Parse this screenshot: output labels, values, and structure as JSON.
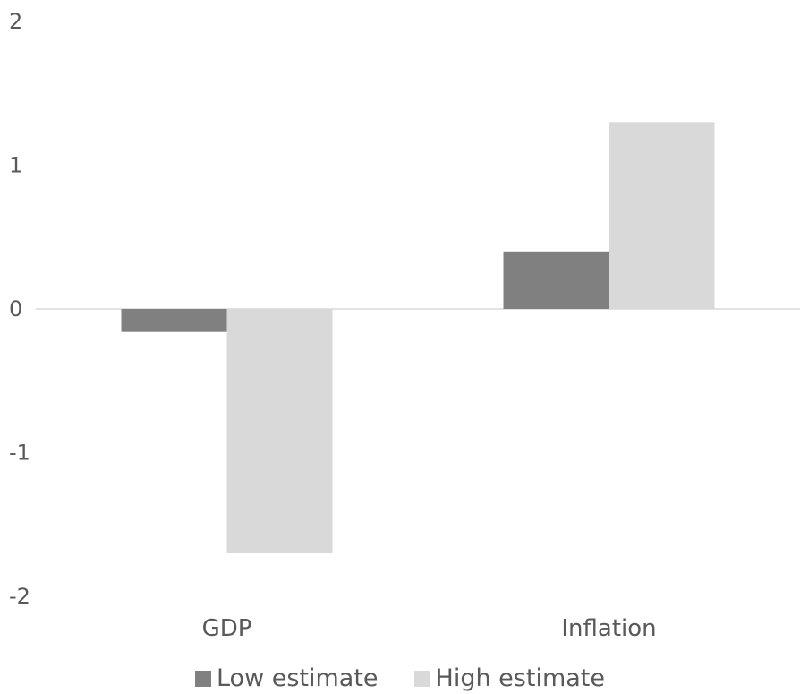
{
  "chart_data": {
    "type": "bar",
    "title": "",
    "xlabel": "",
    "ylabel": "",
    "categories": [
      "GDP",
      "Inflation"
    ],
    "series": [
      {
        "name": "Low estimate",
        "values": [
          -0.16,
          0.4
        ],
        "color": "#808080"
      },
      {
        "name": "High estimate",
        "values": [
          -1.7,
          1.3
        ],
        "color": "#d9d9d9"
      }
    ],
    "ylim": [
      -2,
      2
    ],
    "yticks": [
      "2",
      "1",
      "0",
      "-1",
      "-2"
    ],
    "grid": false,
    "legend_position": "bottom"
  }
}
